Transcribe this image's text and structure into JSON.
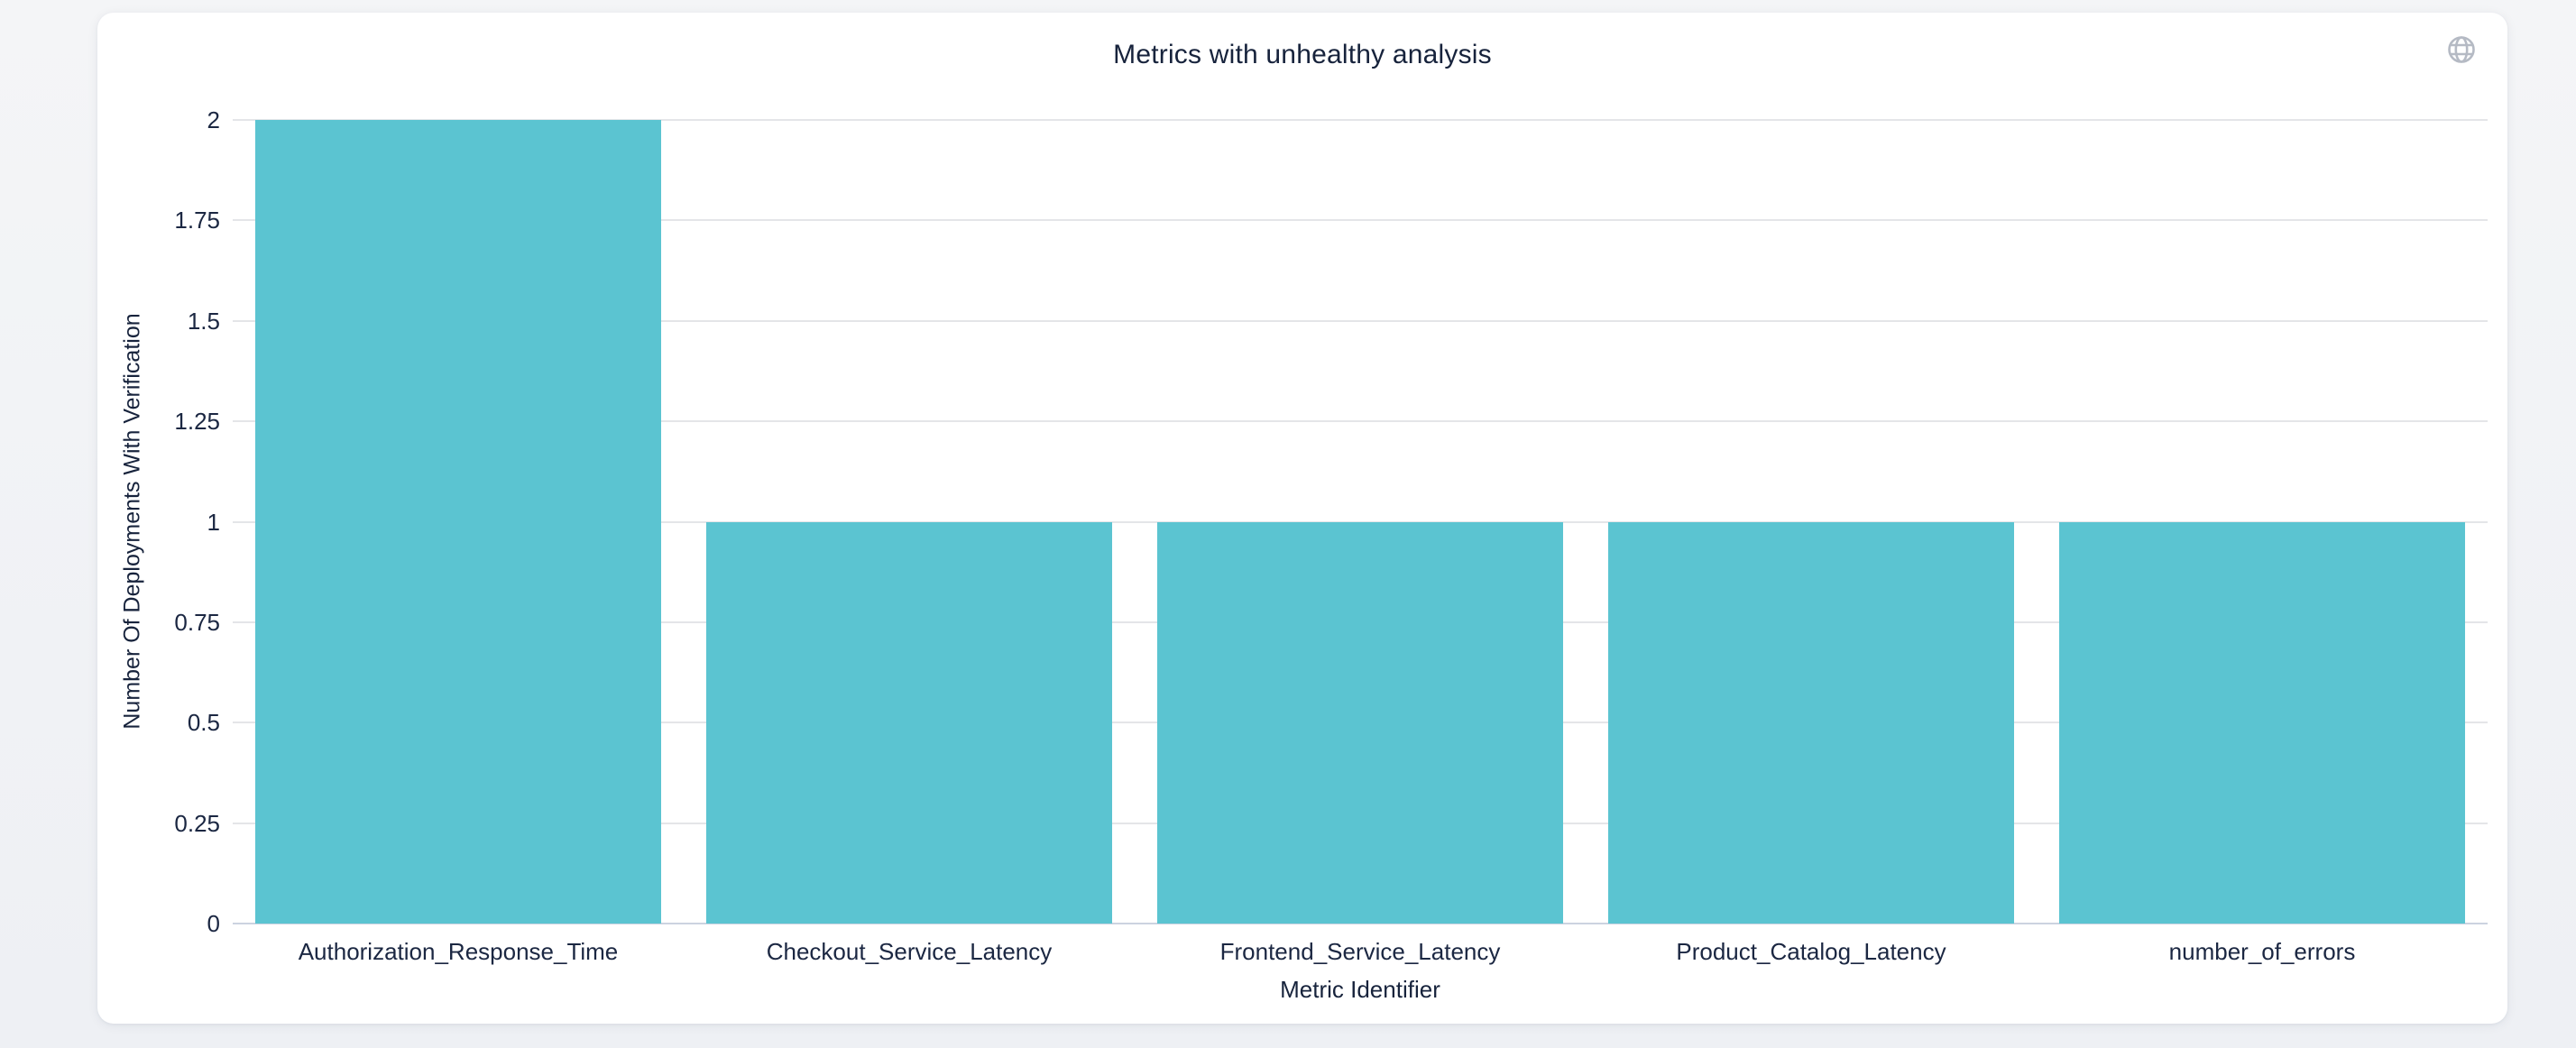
{
  "colors": {
    "bar": "#5bc4d1",
    "text_dark": "#17233c",
    "tick_text": "#1b2742",
    "gridline": "#e4e5e8",
    "axis_baseline": "#ccd3e0",
    "globe_icon": "#b5bac4",
    "card_background": "#ffffff",
    "page_background": "#f2f4f6"
  },
  "icons": {
    "globe": "globe-icon"
  },
  "chart_data": {
    "type": "bar",
    "title": "Metrics with unhealthy analysis",
    "categories": [
      "Authorization_Response_Time",
      "Checkout_Service_Latency",
      "Frontend_Service_Latency",
      "Product_Catalog_Latency",
      "number_of_errors"
    ],
    "values": [
      2,
      1,
      1,
      1,
      1
    ],
    "xlabel": "Metric Identifier",
    "ylabel": "Number Of Deployments With Verification",
    "ylim": [
      0,
      2
    ],
    "yticks": [
      0,
      0.25,
      0.5,
      0.75,
      1,
      1.25,
      1.5,
      1.75,
      2
    ],
    "bar_color": "#5bc4d1",
    "grid": true,
    "legend_position": "none",
    "bar_band_fraction": 0.9
  }
}
